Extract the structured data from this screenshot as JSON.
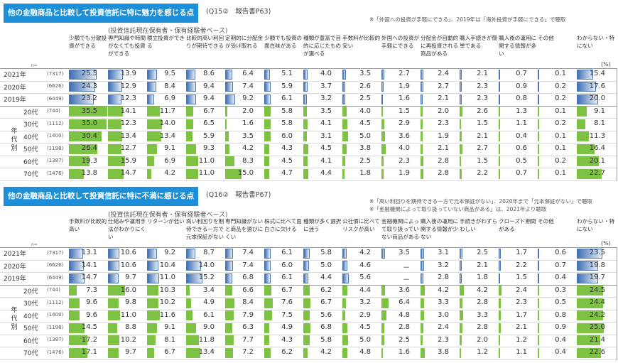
{
  "colors": {
    "banner": "#1d8fd9",
    "year_bar": "#3f6fb3",
    "age_bar": "#7dc242"
  },
  "n_label": "n=",
  "unit": "(%)",
  "age_group_label": "年代別",
  "row_labels": [
    {
      "label": "2021年",
      "n": "(7317)",
      "type": "year"
    },
    {
      "label": "2020年",
      "n": "(6626)",
      "type": "year"
    },
    {
      "label": "2019年",
      "n": "(6449)",
      "type": "year"
    },
    {
      "label": "20代",
      "n": "(744)",
      "type": "age"
    },
    {
      "label": "30代",
      "n": "(1112)",
      "type": "age"
    },
    {
      "label": "40代",
      "n": "(1400)",
      "type": "age"
    },
    {
      "label": "50代",
      "n": "(1198)",
      "type": "age"
    },
    {
      "label": "60代",
      "n": "(1387)",
      "type": "age"
    },
    {
      "label": "70代",
      "n": "(1476)",
      "type": "age"
    }
  ],
  "sections": [
    {
      "title": "他の金融商品と比較して投資信託に特に魅力を感じる点",
      "qref": "(Q15②　報告書P63)",
      "notes": [
        "※「外国への投資が手軽にできる」、2019年は「海外投資が手軽にできる」で聴取"
      ],
      "subtitle": "(投資信託現在保有者・保有経験者ベース)",
      "columns": [
        "少額でも分散投資ができる",
        "専門知識や時間がなくても投資ができる",
        "積立投資ができる",
        "比較的高い利回りが期待できる",
        "定期的に分配金が受け取れる",
        "少額でも投資の面白味がある",
        "種類が豊富で目的に応じたものが選べる",
        "手数料が比較的安い",
        "外国への投資が手軽にできる",
        "分配金が自動的に再投資される商品がある",
        "購入手続きが簡単である",
        "購入後の運用に関する情報が多い",
        "その他",
        "わからない・特にない"
      ],
      "values": [
        [
          25.5,
          13.9,
          9.5,
          8.6,
          6.4,
          5.1,
          4.0,
          3.5,
          2.7,
          2.4,
          2.1,
          0.7,
          0.1,
          15.4
        ],
        [
          24.3,
          12.9,
          8.4,
          9.4,
          7.4,
          5.9,
          3.7,
          2.6,
          1.9,
          2.7,
          2.3,
          0.9,
          0.2,
          17.6
        ],
        [
          23.2,
          12.3,
          6.9,
          9.4,
          9.2,
          6.1,
          3.2,
          2.5,
          1.6,
          2.1,
          2.3,
          0.8,
          0.2,
          20.0
        ],
        [
          35.5,
          14.1,
          11.7,
          6.7,
          2.0,
          5.8,
          3.5,
          4.0,
          1.5,
          2.0,
          2.6,
          1.3,
          0.1,
          9.1
        ],
        [
          35.0,
          12.3,
          14.0,
          6.5,
          1.6,
          5.8,
          4.1,
          4.5,
          2.9,
          2.3,
          1.5,
          1.1,
          0.2,
          8.1
        ],
        [
          30.4,
          13.4,
          13.4,
          5.9,
          3.5,
          6.0,
          3.1,
          5.0,
          3.6,
          1.9,
          2.1,
          0.4,
          0.1,
          11.3
        ],
        [
          26.4,
          12.7,
          9.1,
          9.3,
          4.2,
          4.3,
          4.5,
          3.8,
          4.0,
          2.1,
          2.7,
          0.6,
          0.1,
          16.4
        ],
        [
          19.3,
          15.9,
          6.9,
          11.0,
          8.3,
          4.5,
          4.1,
          2.5,
          2.3,
          2.8,
          1.5,
          0.5,
          0.2,
          20.1
        ],
        [
          13.8,
          14.7,
          4.2,
          11.0,
          15.0,
          4.7,
          4.4,
          1.8,
          1.9,
          2.8,
          2.2,
          0.7,
          0.1,
          22.7
        ]
      ]
    },
    {
      "title": "他の金融商品と比較して投資信託に特に不満に感じる点",
      "qref": "(Q16②　報告書P67)",
      "notes": [
        "※「高い利回りを期待できる一方で元本保証がない」、2020年まで「元本保証がない」で聴取",
        "※「金融機関によって取り扱っていない商品がある」は、2021年より聴取"
      ],
      "subtitle": "(投資信託現在保有者・保有経験者ベース)",
      "columns": [
        "手数料が比較的高い",
        "仕組みや運用手法がわかりにくい",
        "リターンが低い",
        "高い利回りを期待できる一方で元本保証がない",
        "専門知識がないと商品を選びにくい",
        "株式に比べて面白さに欠ける",
        "種類が多く選択に迷う",
        "公社債に比べてリスクが高い",
        "金融機関によって取り扱っていない商品がある",
        "購入後の運用に関する情報が少ない",
        "手続きがわずらわしい",
        "クローズド期間がある",
        "その他",
        "わからない・特にない"
      ],
      "values": [
        [
          13.1,
          10.6,
          9.2,
          8.7,
          7.4,
          6.1,
          5.8,
          4.2,
          3.5,
          3.1,
          2.5,
          1.7,
          0.6,
          23.5
        ],
        [
          14.1,
          10.6,
          10.4,
          14.0,
          7.4,
          6.0,
          5.0,
          4.6,
          "－",
          3.2,
          2.1,
          2.2,
          0.7,
          19.8
        ],
        [
          14.7,
          9.7,
          11.0,
          15.2,
          6.8,
          6.1,
          4.4,
          5.6,
          "－",
          2.8,
          1.8,
          1.5,
          0.4,
          19.7
        ],
        [
          7.3,
          16.0,
          10.3,
          3.4,
          6.6,
          6.7,
          6.2,
          4.4,
          3.6,
          4.2,
          4.2,
          2.4,
          0.3,
          24.5
        ],
        [
          9.6,
          9.8,
          10.2,
          4.9,
          8.4,
          7.6,
          6.7,
          3.2,
          6.4,
          3.3,
          2.8,
          2.3,
          0.5,
          24.4
        ],
        [
          9.6,
          11.0,
          11.6,
          6.1,
          7.9,
          7.5,
          5.6,
          2.9,
          4.8,
          3.0,
          3.3,
          1.7,
          0.8,
          24.2
        ],
        [
          14.5,
          8.8,
          9.1,
          9.0,
          6.3,
          4.9,
          6.8,
          4.5,
          2.8,
          2.4,
          2.8,
          2.1,
          0.9,
          25.0
        ],
        [
          17.2,
          10.2,
          8.1,
          11.8,
          7.7,
          4.3,
          5.8,
          5.0,
          2.5,
          2.3,
          2.0,
          1.2,
          0.4,
          21.4
        ],
        [
          17.1,
          9.7,
          6.7,
          13.4,
          7.2,
          6.2,
          4.2,
          4.8,
          1.6,
          3.8,
          1.2,
          1.1,
          0.4,
          22.6
        ]
      ]
    }
  ]
}
